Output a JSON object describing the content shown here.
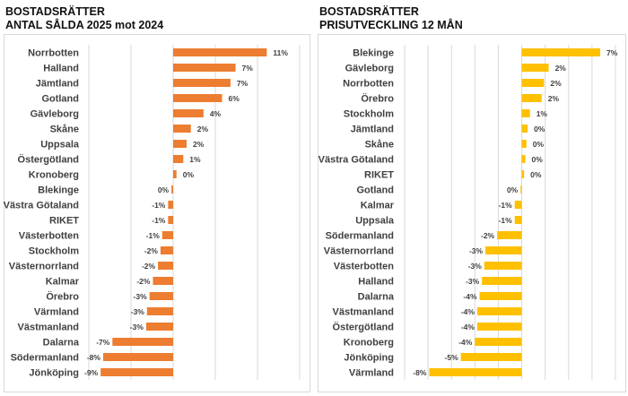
{
  "chart_data": [
    {
      "type": "bar",
      "orientation": "horizontal",
      "title": [
        "BOSTADSRÄTTER",
        "ANTAL SÅLDA 2025 mot 2024"
      ],
      "categories": [
        "Norrbotten",
        "Halland",
        "Jämtland",
        "Gotland",
        "Gävleborg",
        "Skåne",
        "Uppsala",
        "Östergötland",
        "Kronoberg",
        "Blekinge",
        "Västra Götaland",
        "RIKET",
        "Västerbotten",
        "Stockholm",
        "Västernorrland",
        "Kalmar",
        "Örebro",
        "Värmland",
        "Västmanland",
        "Dalarna",
        "Södermanland",
        "Jönköping"
      ],
      "values": [
        11.1,
        7.4,
        6.8,
        5.8,
        3.6,
        2.1,
        1.6,
        1.2,
        0.4,
        -0.2,
        -0.6,
        -0.6,
        -1.3,
        -1.5,
        -1.8,
        -2.4,
        -2.8,
        -3.1,
        -3.2,
        -7.2,
        -8.3,
        -8.6
      ],
      "data_labels": [
        "11%",
        "7%",
        "7%",
        "6%",
        "4%",
        "2%",
        "2%",
        "1%",
        "0%",
        "0%",
        "-1%",
        "-1%",
        "-1%",
        "-2%",
        "-2%",
        "-2%",
        "-3%",
        "-3%",
        "-3%",
        "-7%",
        "-8%",
        "-9%"
      ],
      "xlim": [
        -10,
        15
      ],
      "grid_step": 5,
      "grid": true,
      "color": "#ED7D31"
    },
    {
      "type": "bar",
      "orientation": "horizontal",
      "title": [
        "BOSTADSRÄTTER",
        "PRISUTVECKLING 12 MÅN"
      ],
      "categories": [
        "Blekinge",
        "Gävleborg",
        "Norrbotten",
        "Örebro",
        "Stockholm",
        "Jämtland",
        "Skåne",
        "Västra Götaland",
        "RIKET",
        "Gotland",
        "Kalmar",
        "Uppsala",
        "Södermanland",
        "Västernorrland",
        "Västerbotten",
        "Halland",
        "Dalarna",
        "Västmanland",
        "Östergötland",
        "Kronoberg",
        "Jönköping",
        "Värmland"
      ],
      "values": [
        6.7,
        2.3,
        1.9,
        1.7,
        0.7,
        0.5,
        0.4,
        0.3,
        0.2,
        -0.1,
        -0.6,
        -0.6,
        -2.1,
        -3.1,
        -3.2,
        -3.4,
        -3.6,
        -3.8,
        -3.8,
        -4.0,
        -5.2,
        -7.9
      ],
      "data_labels": [
        "7%",
        "2%",
        "2%",
        "2%",
        "1%",
        "0%",
        "0%",
        "0%",
        "0%",
        "0%",
        "-1%",
        "-1%",
        "-2%",
        "-3%",
        "-3%",
        "-3%",
        "-4%",
        "-4%",
        "-4%",
        "-4%",
        "-5%",
        "-8%"
      ],
      "xlim": [
        -10,
        8
      ],
      "grid_step": 2,
      "grid": true,
      "color": "#FFC000"
    }
  ]
}
